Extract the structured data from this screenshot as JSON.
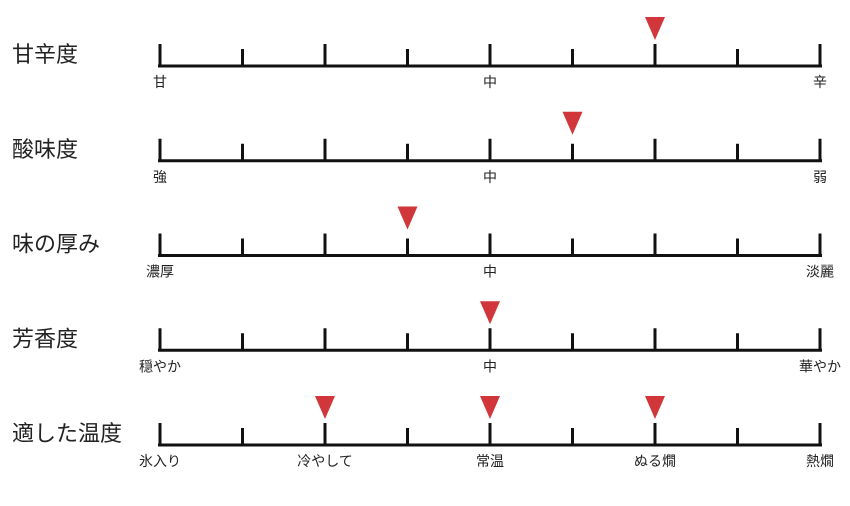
{
  "scale": {
    "min": 0,
    "max": 8,
    "ticks": [
      0,
      1,
      2,
      3,
      4,
      5,
      6,
      7,
      8
    ]
  },
  "rows": [
    {
      "title": "甘辛度",
      "scale_labels": [
        {
          "position": 0,
          "label": "甘"
        },
        {
          "position": 4,
          "label": "中"
        },
        {
          "position": 8,
          "label": "辛"
        }
      ],
      "markers": [
        6
      ]
    },
    {
      "title": "酸味度",
      "scale_labels": [
        {
          "position": 0,
          "label": "強"
        },
        {
          "position": 4,
          "label": "中"
        },
        {
          "position": 8,
          "label": "弱"
        }
      ],
      "markers": [
        5
      ]
    },
    {
      "title": "味の厚み",
      "scale_labels": [
        {
          "position": 0,
          "label": "濃厚"
        },
        {
          "position": 4,
          "label": "中"
        },
        {
          "position": 8,
          "label": "淡麗"
        }
      ],
      "markers": [
        3
      ]
    },
    {
      "title": "芳香度",
      "scale_labels": [
        {
          "position": 0,
          "label": "穏やか"
        },
        {
          "position": 4,
          "label": "中"
        },
        {
          "position": 8,
          "label": "華やか"
        }
      ],
      "markers": [
        4
      ]
    },
    {
      "title": "適した温度",
      "scale_labels": [
        {
          "position": 0,
          "label": "氷入り"
        },
        {
          "position": 2,
          "label": "冷やして"
        },
        {
          "position": 4,
          "label": "常温"
        },
        {
          "position": 6,
          "label": "ぬる燗"
        },
        {
          "position": 8,
          "label": "熱燗"
        }
      ],
      "markers": [
        2,
        4,
        6
      ]
    }
  ]
}
